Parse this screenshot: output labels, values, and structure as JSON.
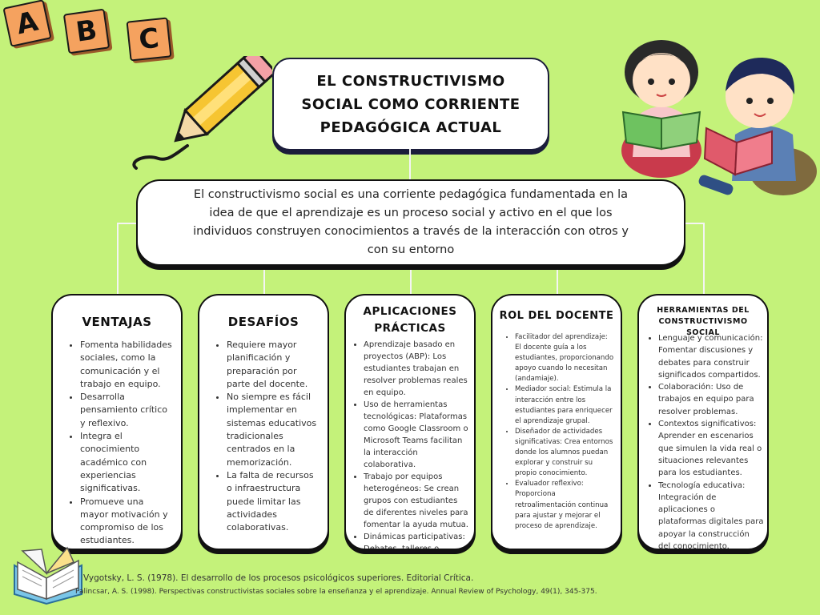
{
  "blocks": {
    "a": "A",
    "b": "B",
    "c": "C"
  },
  "title": "EL CONSTRUCTIVISMO SOCIAL COMO CORRIENTE PEDAGÓGICA ACTUAL",
  "intro": "El constructivismo social es una corriente pedagógica fundamentada en la idea de que el aprendizaje es un proceso social y activo en el que los individuos construyen conocimientos a través de la interacción con otros y con su entorno",
  "cards": [
    {
      "title": "VENTAJAS",
      "items": [
        "Fomenta habilidades sociales, como la comunicación y el trabajo en equipo.",
        "Desarrolla pensamiento crítico y reflexivo.",
        "Integra el conocimiento académico con experiencias significativas.",
        "Promueve una mayor motivación y compromiso de los estudiantes."
      ]
    },
    {
      "title": "DESAFÍOS",
      "items": [
        "Requiere mayor planificación y preparación por parte del docente.",
        "No siempre es fácil implementar en sistemas educativos tradicionales centrados en la memorización.",
        "La falta de recursos o infraestructura puede limitar las actividades colaborativas."
      ]
    },
    {
      "title": "APLICACIONES PRÁCTICAS",
      "items": [
        "Aprendizaje basado en proyectos (ABP): Los estudiantes trabajan en resolver problemas reales en equipo.",
        "Uso de herramientas tecnológicas: Plataformas como Google Classroom o Microsoft Teams facilitan la interacción colaborativa.",
        "Trabajo por equipos heterogéneos: Se crean grupos con estudiantes de diferentes niveles para fomentar la ayuda mutua.",
        "Dinámicas participativas: Debates, talleres o simulaciones en clase."
      ]
    },
    {
      "title": "ROL DEL DOCENTE",
      "items": [
        "Facilitador del aprendizaje: El docente guía a los estudiantes, proporcionando apoyo cuando lo necesitan (andamiaje).",
        "Mediador social: Estimula la interacción entre los estudiantes para enriquecer el aprendizaje grupal.",
        "Diseñador de actividades significativas: Crea entornos donde los alumnos puedan explorar y construir su propio conocimiento.",
        "Evaluador reflexivo: Proporciona retroalimentación continua para ajustar y mejorar el proceso de aprendizaje."
      ]
    },
    {
      "title": "HERRAMIENTAS DEL CONSTRUCTIVISMO SOCIAL",
      "items": [
        "Lenguaje y comunicación: Fomentar discusiones y debates para construir significados compartidos.",
        "Colaboración: Uso de trabajos en equipo para resolver problemas.",
        "Contextos significativos: Aprender en escenarios que simulen la vida real o situaciones relevantes para los estudiantes.",
        "Tecnología educativa: Integración de aplicaciones o plataformas digitales para apoyar la construcción del conocimiento."
      ]
    }
  ],
  "references": [
    "Vygotsky, L. S. (1978). El desarrollo de los procesos psicológicos superiores. Editorial Crítica.",
    "Palincsar, A. S. (1998). Perspectivas constructivistas sociales sobre la enseñanza y el aprendizaje. Annual Review of Psychology, 49(1), 345-375."
  ]
}
